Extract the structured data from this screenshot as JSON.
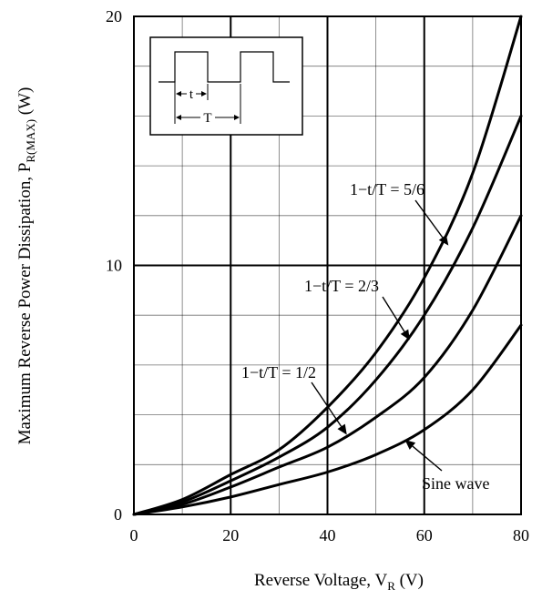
{
  "chart_data": {
    "type": "line",
    "title": "",
    "xlabel": {
      "main": "Reverse Voltage, V",
      "sub": "R",
      "unit": " (V)"
    },
    "ylabel": {
      "main": "Maximum Reverse Power Dissipation, P",
      "sub": "R(MAX)",
      "unit": "  (W)"
    },
    "xlim": [
      0,
      80
    ],
    "ylim": [
      0,
      20
    ],
    "x_major_ticks": [
      0,
      20,
      40,
      60,
      80
    ],
    "y_major_ticks": [
      0,
      10,
      20
    ],
    "x_minor_step": 10,
    "y_minor_step": 2,
    "grid": true,
    "series": [
      {
        "name": "1−t/T = 5/6",
        "x": [
          0,
          10,
          20,
          30,
          40,
          50,
          60,
          70,
          80
        ],
        "y": [
          0,
          0.6,
          1.6,
          2.6,
          4.3,
          6.5,
          9.5,
          13.7,
          20
        ]
      },
      {
        "name": "1−t/T = 2/3",
        "x": [
          0,
          10,
          20,
          30,
          40,
          50,
          60,
          70,
          80
        ],
        "y": [
          0,
          0.5,
          1.35,
          2.3,
          3.5,
          5.4,
          8.0,
          11.5,
          16
        ]
      },
      {
        "name": "1−t/T = 1/2",
        "x": [
          0,
          10,
          20,
          30,
          40,
          50,
          60,
          70,
          80
        ],
        "y": [
          0,
          0.4,
          1.1,
          1.9,
          2.7,
          3.9,
          5.5,
          8.2,
          12
        ]
      },
      {
        "name": "Sine wave",
        "x": [
          0,
          10,
          20,
          30,
          40,
          50,
          60,
          70,
          80
        ],
        "y": [
          0,
          0.3,
          0.7,
          1.2,
          1.7,
          2.4,
          3.4,
          5.0,
          7.6
        ]
      }
    ],
    "annotations": [
      {
        "text": "1−t/T = 5/6",
        "series_index": 0,
        "arrow_to": [
          65,
          10.8
        ]
      },
      {
        "text": "1−t/T = 2/3",
        "series_index": 1,
        "arrow_to": [
          57,
          7.0
        ]
      },
      {
        "text": "1−t/T = 1/2",
        "series_index": 2,
        "arrow_to": [
          44,
          3.2
        ]
      },
      {
        "text": "Sine wave",
        "series_index": 3,
        "arrow_to": [
          56,
          3.0
        ]
      }
    ],
    "inset": {
      "t_label": "t",
      "T_label": "T"
    }
  }
}
